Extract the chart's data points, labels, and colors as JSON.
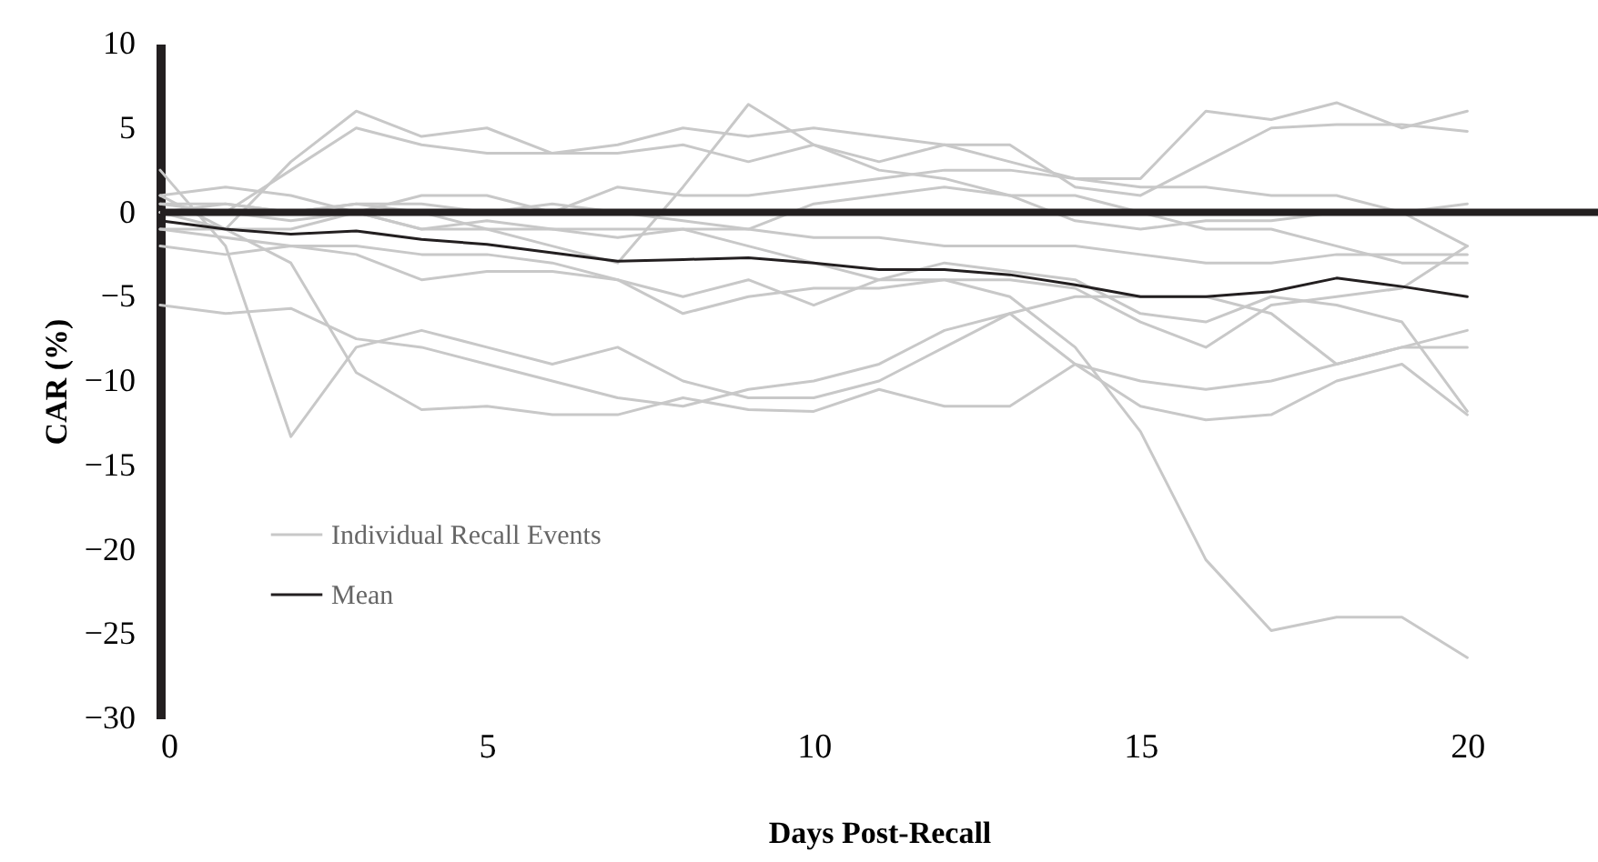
{
  "chart_data": {
    "type": "line",
    "xlabel": "Days Post-Recall",
    "ylabel": "CAR (%)",
    "x": [
      0,
      1,
      2,
      3,
      4,
      5,
      6,
      7,
      8,
      9,
      10,
      11,
      12,
      13,
      14,
      15,
      16,
      17,
      18,
      19,
      20
    ],
    "xlim": [
      0,
      22
    ],
    "xticks": [
      0,
      5,
      10,
      15,
      20
    ],
    "ylim": [
      -30,
      10
    ],
    "yticks": [
      -30,
      -25,
      -20,
      -15,
      -10,
      -5,
      0,
      5,
      10
    ],
    "grid": false,
    "legend": "bottom left",
    "line_style": "solid",
    "marker": "none",
    "ref_lines": [
      {
        "axis": "y",
        "value": 0,
        "color": "#231f20"
      }
    ],
    "series": [
      {
        "name": "Individual Recall Events",
        "color": "#c8c8c8",
        "values": [
          1,
          -1,
          3,
          6,
          4.5,
          5,
          3.5,
          4,
          5,
          4.5,
          5,
          4.5,
          4,
          3,
          2,
          2,
          6,
          5.5,
          6.5,
          5,
          6
        ]
      },
      {
        "color": "#c8c8c8",
        "values": [
          0.5,
          0,
          2.5,
          5,
          4,
          3.5,
          3.5,
          3.5,
          4,
          3,
          4,
          3,
          4,
          4,
          1.5,
          1,
          3,
          5,
          5.2,
          5.2,
          4.8
        ]
      },
      {
        "color": "#c8c8c8",
        "values": [
          2.5,
          -2,
          -13.3,
          -8,
          -7,
          -8,
          -9,
          -8,
          -10,
          -11,
          -11,
          -10,
          -8,
          -6,
          -5,
          -5,
          -5,
          -6,
          -9,
          -8,
          -7
        ]
      },
      {
        "color": "#c8c8c8",
        "values": [
          -1,
          -1,
          -1,
          0,
          -1,
          -1,
          -1,
          -1,
          -1,
          -2,
          -3,
          -4,
          -4,
          -5,
          -8,
          -13,
          -20.6,
          -24.8,
          -24,
          -24,
          -26.4
        ]
      },
      {
        "color": "#c8c8c8",
        "values": [
          -5.5,
          -6,
          -5.7,
          -7.5,
          -8,
          -9,
          -10,
          -11,
          -11.5,
          -10.5,
          -10,
          -9,
          -7,
          -6,
          -9,
          -10,
          -10.5,
          -10,
          -9,
          -8,
          -8
        ]
      },
      {
        "color": "#c8c8c8",
        "values": [
          0,
          -1,
          -3,
          -9.5,
          -11.7,
          -11.5,
          -12,
          -12,
          -11,
          -11.7,
          -11.8,
          -10.5,
          -11.5,
          -11.5,
          -9,
          -11.5,
          -12.3,
          -12,
          -10,
          -9,
          -12
        ]
      },
      {
        "color": "#c8c8c8",
        "values": [
          0,
          0.5,
          0,
          0.5,
          0,
          -1,
          -2,
          -3,
          1.5,
          6.4,
          4,
          2.5,
          2,
          1,
          1,
          0,
          -1,
          -1,
          -2,
          -3,
          -3
        ]
      },
      {
        "color": "#c8c8c8",
        "values": [
          1,
          1.5,
          1,
          0,
          1,
          1,
          0,
          1.5,
          1,
          1,
          1.5,
          2,
          2.5,
          2.5,
          2,
          1.5,
          1.5,
          1,
          1,
          0,
          -2
        ]
      },
      {
        "color": "#c8c8c8",
        "values": [
          -2,
          -2.5,
          -2,
          -2.5,
          -4,
          -3.5,
          -3.5,
          -4,
          -6,
          -5,
          -4.5,
          -4.5,
          -4,
          -4,
          -4.5,
          -6.5,
          -8,
          -5.5,
          -5,
          -4.5,
          -2
        ]
      },
      {
        "color": "#c8c8c8",
        "values": [
          -1,
          -1.5,
          -2,
          -2,
          -2.5,
          -2.5,
          -3,
          -4,
          -5,
          -4,
          -5.5,
          -4,
          -3,
          -3.5,
          -4,
          -6,
          -6.5,
          -5,
          -5.5,
          -6.5,
          -11.8
        ]
      },
      {
        "color": "#c8c8c8",
        "values": [
          0,
          0,
          -0.5,
          0,
          -1,
          -0.5,
          -1,
          -1.5,
          -1,
          -1,
          0.5,
          1,
          1.5,
          1,
          -0.5,
          -1,
          -0.5,
          -0.5,
          0,
          0,
          0.5
        ]
      },
      {
        "color": "#c8c8c8",
        "values": [
          0.5,
          0.5,
          0,
          0.5,
          0.5,
          0,
          0.5,
          0,
          -0.5,
          -1,
          -1.5,
          -1.5,
          -2,
          -2,
          -2,
          -2.5,
          -3,
          -3,
          -2.5,
          -2.5,
          -2.5
        ]
      },
      {
        "name": "Mean",
        "color": "#231f20",
        "values": [
          -0.5,
          -1,
          -1.3,
          -1.1,
          -1.6,
          -1.9,
          -2.4,
          -2.9,
          -2.8,
          -2.7,
          -3,
          -3.4,
          -3.4,
          -3.7,
          -4.3,
          -5,
          -5,
          -4.7,
          -3.9,
          -4.4,
          -5
        ]
      }
    ]
  }
}
